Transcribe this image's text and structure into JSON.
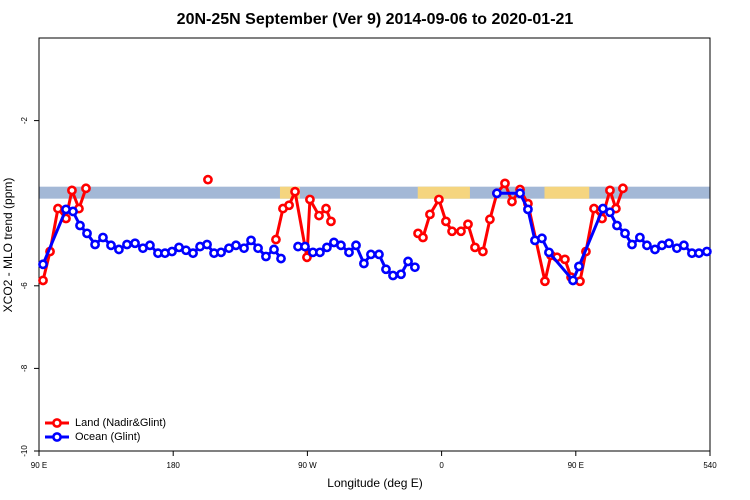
{
  "chart_data": {
    "type": "line",
    "title": "20N-25N September (Ver 9)   2014-09-06 to 2020-01-21",
    "x_label": "Longitude (deg E)",
    "y_label": "XCO2 - MLO trend (ppm)",
    "xlim": [
      90,
      540
    ],
    "xticks": [
      {
        "value": 90,
        "label": "90 E"
      },
      180,
      {
        "value": 270,
        "label": "90 W"
      },
      {
        "value": 360,
        "label": "0"
      },
      {
        "value": 450,
        "label": "90 E"
      },
      540
    ],
    "ylim": [
      -10,
      0
    ],
    "yticks": [
      -10,
      -8,
      -6,
      -2
    ],
    "legend": "bottom-left",
    "mask": {
      "color": "#a3b8d6",
      "land_color": "#f5d57f",
      "ylim": [
        -3.89,
        -3.6
      ],
      "land": [
        [
          251.6,
          265
        ],
        [
          344,
          379
        ],
        [
          429,
          459
        ]
      ]
    },
    "series": [
      {
        "name": "Land (Nadir&Glint)",
        "color": "#ff0000",
        "x": [
          92.7,
          97.4,
          102.7,
          108.1,
          112.1,
          116.8,
          121.5,
          null,
          203.3,
          null,
          248.9,
          253.6,
          257.7,
          261.7,
          269.7,
          271.7,
          277.8,
          282.5,
          285.8,
          null,
          344.2,
          347.5,
          352.2,
          358.2,
          362.9,
          367.0,
          373.0,
          377.7,
          382.4,
          387.7,
          392.4,
          397.1,
          402.5,
          407.2,
          412.6,
          417.9,
          429.3,
          433.3,
          437.4,
          442.7,
          446.8,
          452.8,
          456.8,
          462.2,
          467.6,
          472.9,
          476.9,
          481.6
        ],
        "values": [
          -5.87,
          -5.17,
          -4.13,
          -4.37,
          -3.69,
          -4.13,
          -3.64,
          null,
          -3.43,
          null,
          -4.88,
          -4.13,
          -4.05,
          -3.72,
          -5.31,
          -3.91,
          -4.3,
          -4.13,
          -4.44,
          null,
          -4.73,
          -4.83,
          -4.27,
          -3.91,
          -4.44,
          -4.68,
          -4.68,
          -4.51,
          -5.07,
          -5.17,
          -4.39,
          -3.76,
          -3.52,
          -3.96,
          -3.67,
          -4.01,
          -5.89,
          -5.26,
          -5.31,
          -5.36,
          -5.79,
          -5.89,
          -5.17,
          -4.13,
          -4.37,
          -3.69,
          -4.13,
          -3.64
        ]
      },
      {
        "name": "Ocean (Glint)",
        "color": "#0000ff",
        "x": [
          92.7,
          108.1,
          112.8,
          117.5,
          122.2,
          127.6,
          132.9,
          138.3,
          143.6,
          149.0,
          154.4,
          159.7,
          164.4,
          169.8,
          174.5,
          179.2,
          183.9,
          188.6,
          193.3,
          198.0,
          202.7,
          207.4,
          212.1,
          217.4,
          222.1,
          227.5,
          232.2,
          236.9,
          242.2,
          247.6,
          252.3,
          null,
          263.7,
          268.4,
          273.7,
          278.4,
          283.1,
          287.8,
          292.5,
          297.9,
          302.6,
          307.9,
          312.6,
          318.0,
          322.7,
          327.4,
          332.8,
          337.5,
          342.1,
          null,
          397.1,
          412.6,
          417.9,
          422.6,
          427.3,
          432.0,
          448.1,
          452.1,
          468.2,
          472.9,
          477.6,
          483.0,
          487.7,
          493.0,
          497.7,
          503.1,
          507.8,
          512.5,
          517.8,
          522.5,
          527.9,
          532.6,
          537.9
        ],
        "values": [
          -5.48,
          -4.15,
          -4.2,
          -4.54,
          -4.73,
          -5.0,
          -4.83,
          -5.02,
          -5.12,
          -5.0,
          -4.97,
          -5.09,
          -5.02,
          -5.21,
          -5.21,
          -5.17,
          -5.07,
          -5.14,
          -5.21,
          -5.05,
          -5.0,
          -5.21,
          -5.19,
          -5.09,
          -5.02,
          -5.09,
          -4.9,
          -5.09,
          -5.29,
          -5.12,
          -5.34,
          null,
          -5.05,
          -5.05,
          -5.19,
          -5.19,
          -5.07,
          -4.95,
          -5.02,
          -5.19,
          -5.02,
          -5.46,
          -5.24,
          -5.24,
          -5.6,
          -5.75,
          -5.72,
          -5.41,
          -5.55,
          null,
          -3.76,
          -3.76,
          -4.15,
          -4.9,
          -4.85,
          -5.19,
          -5.87,
          -5.53,
          -4.13,
          -4.22,
          -4.54,
          -4.73,
          -5.0,
          -4.83,
          -5.02,
          -5.12,
          -5.02,
          -4.97,
          -5.09,
          -5.02,
          -5.21,
          -5.21,
          -5.17
        ]
      }
    ]
  }
}
